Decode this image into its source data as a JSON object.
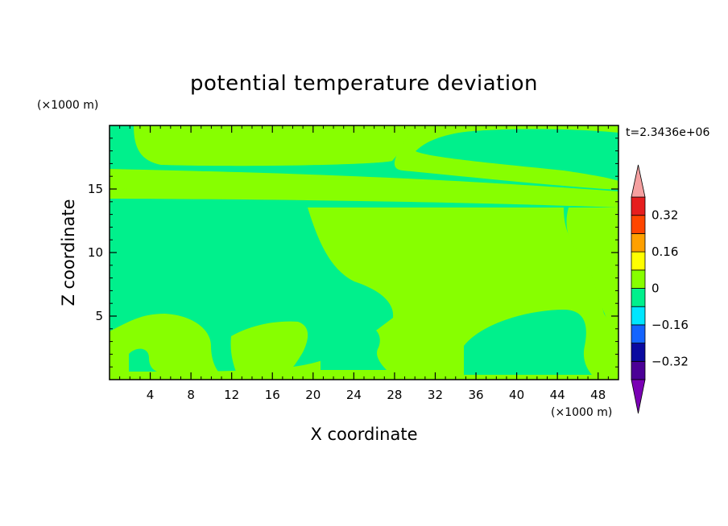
{
  "chart_data": {
    "type": "heatmap",
    "title": "potential temperature deviation",
    "xlabel": "X coordinate",
    "ylabel": "Z coordinate",
    "x_unit": "(×1000 m)",
    "y_unit": "(×1000 m)",
    "time_label": "t=2.3436e+06",
    "xlim": [
      0,
      50
    ],
    "ylim": [
      0,
      20
    ],
    "xticks": [
      4,
      8,
      12,
      16,
      20,
      24,
      28,
      32,
      36,
      40,
      44,
      48
    ],
    "yticks": [
      5,
      10,
      15
    ],
    "colorbar": {
      "levels": [
        -0.4,
        -0.32,
        -0.24,
        -0.16,
        -0.08,
        0,
        0.08,
        0.16,
        0.24,
        0.32,
        0.4
      ],
      "colors": [
        "#4b0096",
        "#0a0aa0",
        "#1464ff",
        "#00e6ff",
        "#00f08c",
        "#87ff00",
        "#ffff00",
        "#ffa000",
        "#ff4600",
        "#e61e1e"
      ],
      "under_color": "#7a00b4",
      "over_color": "#f5a0a0",
      "tick_labels": [
        "0.32",
        "0.16",
        "0",
        "-0.16",
        "-0.32"
      ]
    },
    "dominant_values": {
      "background": "#00f08c",
      "positive_regions": "#87ff00"
    }
  }
}
